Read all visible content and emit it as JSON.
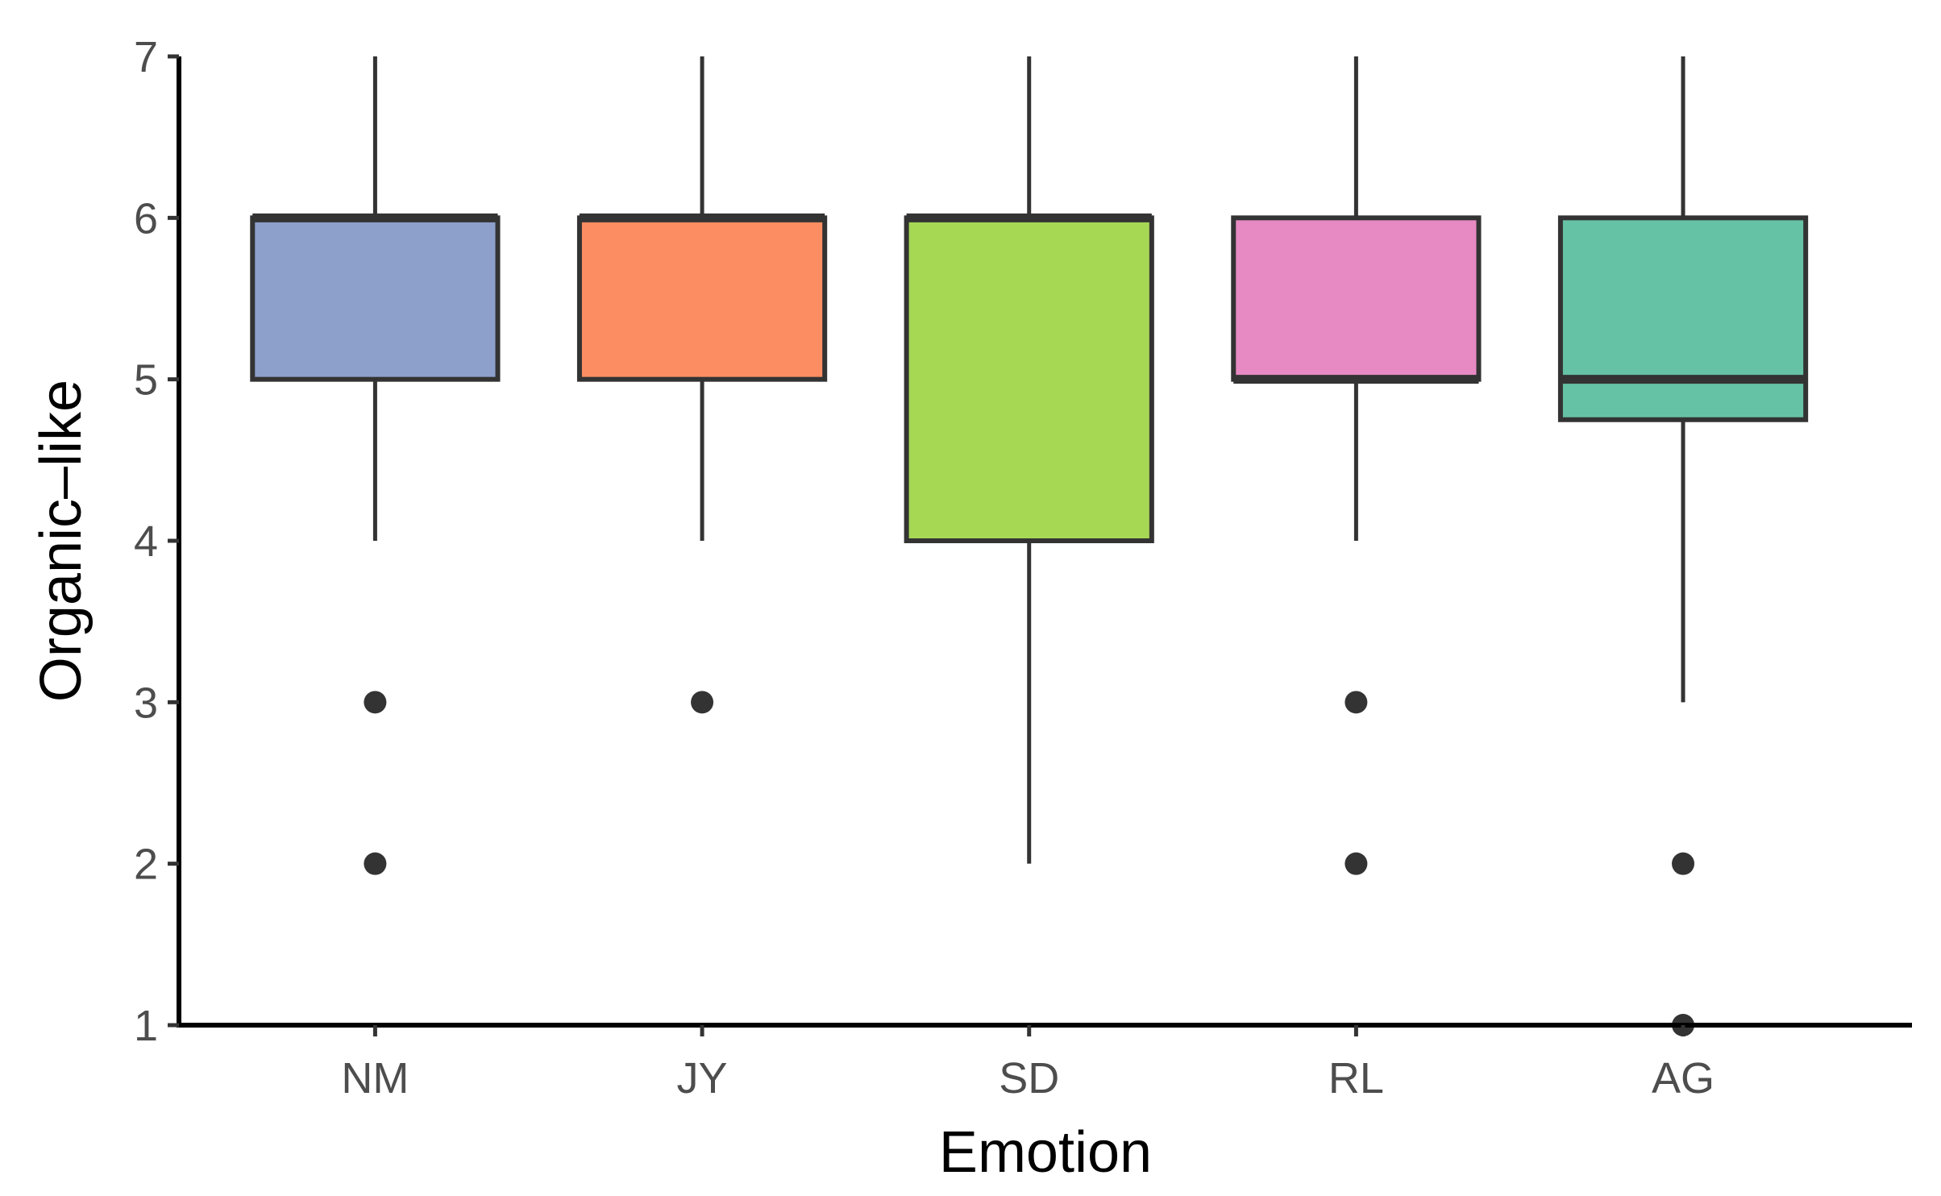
{
  "chart_data": {
    "type": "box",
    "title": "",
    "xlabel": "Emotion",
    "ylabel": "Organic–like",
    "ylim": [
      1,
      7
    ],
    "yticks": [
      1,
      2,
      3,
      4,
      5,
      6,
      7
    ],
    "grid": false,
    "legend": "none",
    "categories": [
      "NM",
      "JY",
      "SD",
      "RL",
      "AG"
    ],
    "boxes": [
      {
        "category": "NM",
        "color": "#8DA0CB",
        "whisker_low": 4,
        "q1": 5,
        "median": 6,
        "q3": 6,
        "whisker_high": 7,
        "outliers": [
          3,
          2
        ]
      },
      {
        "category": "JY",
        "color": "#FC8D62",
        "whisker_low": 4,
        "q1": 5,
        "median": 6,
        "q3": 6,
        "whisker_high": 7,
        "outliers": [
          3
        ]
      },
      {
        "category": "SD",
        "color": "#A6D854",
        "whisker_low": 2,
        "q1": 4,
        "median": 6,
        "q3": 6,
        "whisker_high": 7,
        "outliers": []
      },
      {
        "category": "RL",
        "color": "#E78AC3",
        "whisker_low": 4,
        "q1": 5,
        "median": 5,
        "q3": 6,
        "whisker_high": 7,
        "outliers": [
          3,
          2
        ]
      },
      {
        "category": "AG",
        "color": "#66C2A5",
        "whisker_low": 3,
        "q1": 4.75,
        "median": 5,
        "q3": 6,
        "whisker_high": 7,
        "outliers": [
          2,
          1
        ]
      }
    ],
    "line_color": "#333333"
  }
}
